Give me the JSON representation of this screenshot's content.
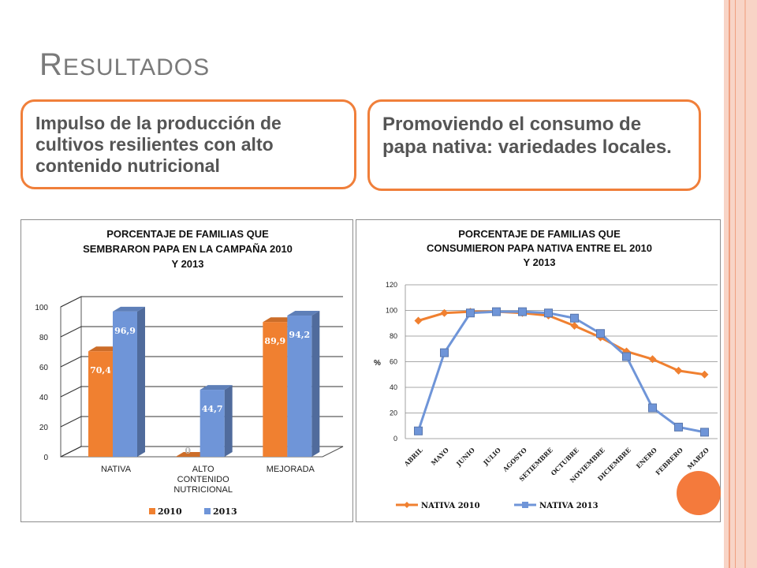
{
  "slide": {
    "title_first": "R",
    "title_rest": "esultados",
    "box_left": "Impulso de la producción de cultivos resilientes con alto contenido nutricional",
    "box_right": "Promoviendo el consumo de papa nativa: variedades locales."
  },
  "colors": {
    "accent_orange": "#f07f3a",
    "series_2010": "#f08030",
    "series_2013": "#6f95d8",
    "stripe_pink": "#f8d4c6"
  },
  "chart_data": [
    {
      "type": "bar",
      "title_lines": [
        "PORCENTAJE DE FAMILIAS QUE",
        "SEMBRARON PAPA EN LA CAMPAÑA 2010",
        "Y 2013"
      ],
      "categories": [
        "NATIVA",
        "ALTO CONTENIDO NUTRICIONAL",
        "MEJORADA"
      ],
      "category_label_lines": [
        [
          "NATIVA"
        ],
        [
          "ALTO",
          "CONTENIDO",
          "NUTRICIONAL"
        ],
        [
          "MEJORADA"
        ]
      ],
      "series": [
        {
          "name": "2010",
          "values": [
            70.4,
            0,
            89.9
          ],
          "labels": [
            "70,4",
            "0",
            "89,9"
          ]
        },
        {
          "name": "2013",
          "values": [
            96.9,
            44.7,
            94.2
          ],
          "labels": [
            "96,9",
            "44,7",
            "94,2"
          ]
        }
      ],
      "yticks": [
        "0",
        "20",
        "40",
        "60",
        "80",
        "100"
      ],
      "ylim": [
        0,
        100
      ],
      "legend_position": "bottom",
      "style": "3d-clustered"
    },
    {
      "type": "line",
      "title_lines": [
        "PORCENTAJE DE FAMILIAS QUE",
        "CONSUMIERON PAPA NATIVA ENTRE EL 2010",
        "Y 2013"
      ],
      "ylabel": "%",
      "x": [
        "ABRIL",
        "MAYO",
        "JUNIO",
        "JULIO",
        "AGOSTO",
        "SETIEMBRE",
        "OCTUBRE",
        "NOVIEMBRE",
        "DICIEMBRE",
        "ENERO",
        "FEBRERO",
        "MARZO"
      ],
      "series": [
        {
          "name": "NATIVA 2010",
          "marker": "diamond",
          "values": [
            92,
            98,
            99,
            99,
            98,
            96,
            88,
            79,
            68,
            62,
            53,
            50
          ]
        },
        {
          "name": "NATIVA 2013",
          "marker": "square",
          "values": [
            6,
            67,
            98,
            99,
            99,
            98,
            94,
            82,
            64,
            24,
            9,
            5
          ]
        }
      ],
      "yticks": [
        "0",
        "20",
        "40",
        "60",
        "80",
        "100",
        "120"
      ],
      "ylim": [
        0,
        120
      ],
      "grid": true,
      "legend_position": "bottom"
    }
  ]
}
